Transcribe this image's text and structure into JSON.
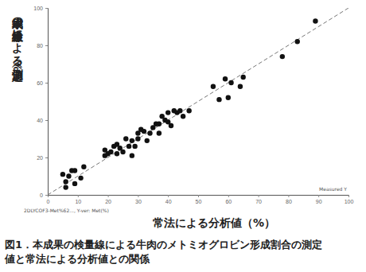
{
  "chart_data": {
    "type": "scatter",
    "title": "図1．本成果の検量線による牛肉のメトミオグロビン形成割合の測定値と常法による分析値との関係",
    "x_label": "常法による分析値（%）",
    "y_label": "本成果の検量線による測定値（%）",
    "annotations": [
      "Measured Y",
      "2DLYCOF3-Met%62..., Y-ver: Met(%)"
    ],
    "x": [
      5,
      6,
      6,
      7,
      8,
      9,
      9,
      11,
      12,
      19,
      19,
      20,
      21,
      22,
      23,
      23,
      24,
      25,
      26,
      27,
      28,
      28,
      29,
      30,
      30,
      31,
      32,
      33,
      34,
      35,
      36,
      37,
      37,
      38,
      39,
      40,
      40,
      41,
      42,
      43,
      44,
      45,
      47,
      55,
      57,
      59,
      60,
      61,
      64,
      65,
      78,
      83,
      89
    ],
    "values": [
      11,
      7,
      4,
      10,
      13,
      13,
      6,
      9,
      15,
      21,
      24,
      22,
      23,
      26,
      27,
      22,
      25,
      23,
      30,
      26,
      29,
      21,
      26,
      30,
      33,
      35,
      34,
      29,
      33,
      36,
      38,
      38,
      33,
      42,
      40,
      44,
      39,
      37,
      45,
      44,
      45,
      42,
      45,
      58,
      51,
      62,
      52,
      60,
      58,
      63,
      74,
      82,
      93
    ],
    "fit_line": {
      "x": [
        0,
        100
      ],
      "values": [
        0,
        100
      ],
      "line_style": "dashed"
    },
    "color": "#111111",
    "marker": "circle",
    "xlim": [
      0,
      100
    ],
    "ylim": [
      0,
      100
    ],
    "xticks": [
      0,
      10,
      20,
      30,
      40,
      50,
      60,
      70,
      80,
      90,
      100
    ],
    "yticks": [
      0,
      20,
      40,
      60,
      80,
      100
    ],
    "grid": false
  }
}
